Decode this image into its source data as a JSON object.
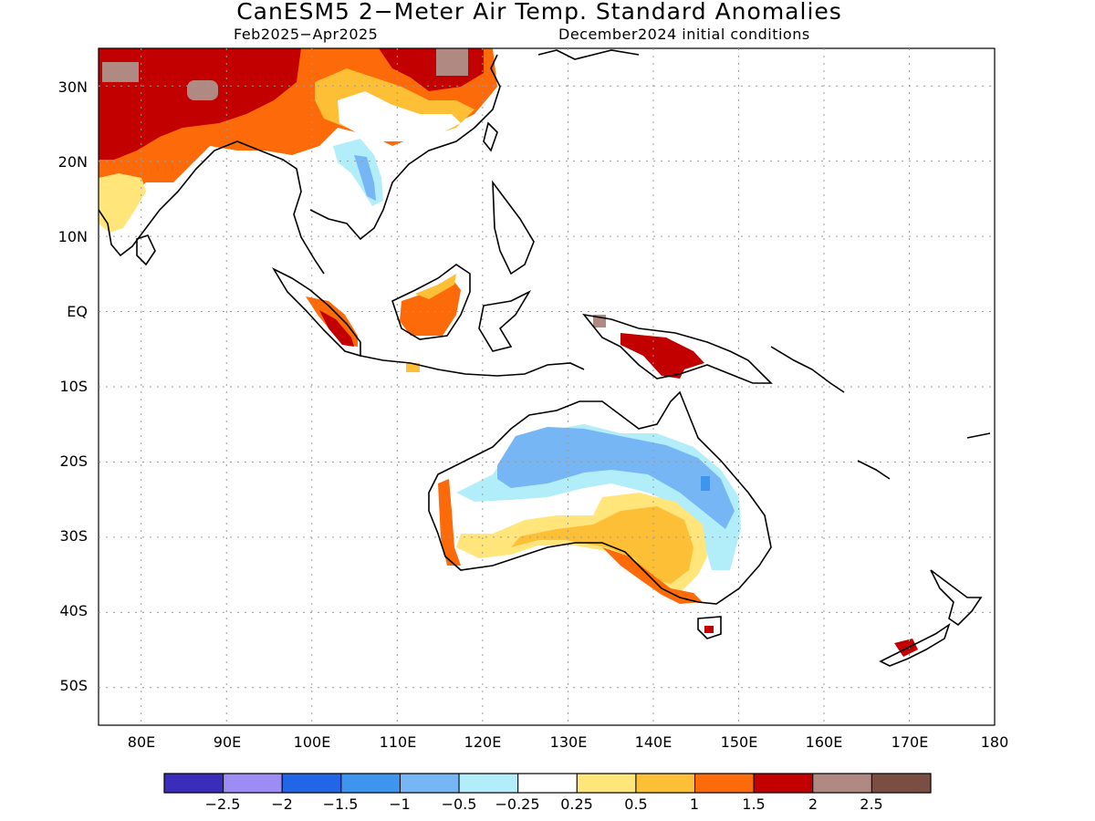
{
  "header": {
    "title": "CanESM5 2−Meter Air Temp. Standard Anomalies",
    "period": "Feb2025−Apr2025",
    "init": "December2024 initial conditions"
  },
  "map": {
    "lat_labels": [
      "30N",
      "20N",
      "10N",
      "EQ",
      "10S",
      "20S",
      "30S",
      "40S",
      "50S"
    ],
    "lon_labels": [
      "80E",
      "90E",
      "100E",
      "110E",
      "120E",
      "130E",
      "140E",
      "150E",
      "160E",
      "170E",
      "180"
    ],
    "extent": {
      "lon": [
        75,
        180
      ],
      "lat": [
        -55,
        35
      ]
    },
    "grid": true
  },
  "colorbar": {
    "labels": [
      "−2.5",
      "−2",
      "−1.5",
      "−1",
      "−0.5",
      "−0.25",
      "0.25",
      "0.5",
      "1",
      "1.5",
      "2",
      "2.5"
    ],
    "colors": [
      "#3a2dbb",
      "#9c8cf4",
      "#2266e8",
      "#3d95f0",
      "#76b6f5",
      "#b2eefa",
      "#ffffff",
      "#ffe57a",
      "#fcbf36",
      "#fc6a0a",
      "#c20000",
      "#b08a82",
      "#7a4e43"
    ]
  }
}
